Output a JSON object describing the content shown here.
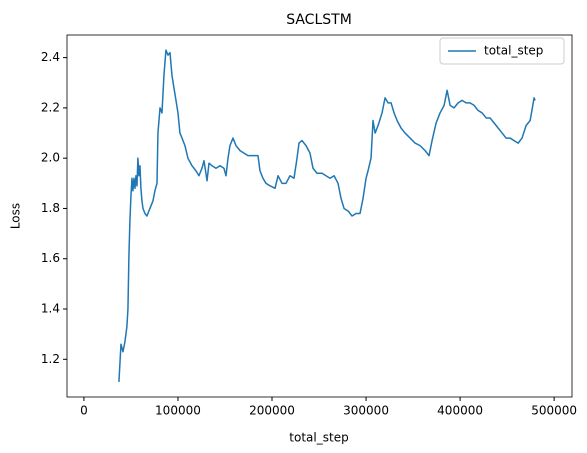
{
  "chart_data": {
    "type": "line",
    "title": "SACLSTM",
    "xlabel": "total_step",
    "ylabel": "Loss",
    "x": [
      37200,
      39400,
      41500,
      43600,
      45700,
      46800,
      47900,
      48900,
      50000,
      51100,
      52100,
      53200,
      54300,
      55300,
      56400,
      57400,
      58500,
      59600,
      60600,
      61700,
      62800,
      64900,
      67000,
      70200,
      73400,
      75500,
      77700,
      78700,
      80900,
      83000,
      85100,
      87200,
      89400,
      91500,
      93600,
      95700,
      97900,
      100000,
      102100,
      104300,
      107400,
      110600,
      114900,
      119100,
      122300,
      125500,
      127700,
      130900,
      133000,
      136200,
      140400,
      144700,
      148900,
      151100,
      153200,
      155300,
      158500,
      161700,
      166000,
      170200,
      174500,
      180900,
      185100,
      187200,
      190400,
      193600,
      197900,
      203200,
      206400,
      210600,
      214900,
      219100,
      223400,
      226600,
      228700,
      231900,
      236200,
      240400,
      243600,
      247900,
      253200,
      257400,
      261700,
      266000,
      270200,
      273400,
      276600,
      280900,
      285100,
      289400,
      293600,
      296800,
      300000,
      302100,
      305300,
      307400,
      309600,
      312800,
      317000,
      320200,
      323400,
      326600,
      329800,
      333000,
      337200,
      341500,
      346800,
      352100,
      357400,
      362800,
      367000,
      370200,
      374500,
      378700,
      383000,
      386200,
      389400,
      393600,
      397900,
      402100,
      406400,
      410600,
      414900,
      419100,
      423400,
      427700,
      431900,
      436200,
      440400,
      444700,
      448900,
      453200,
      457400,
      461700,
      465900,
      470200,
      474500,
      478700,
      479800
    ],
    "series": [
      {
        "name": "total_step",
        "color": "#1f77b4",
        "values": [
          1.11,
          1.26,
          1.23,
          1.27,
          1.33,
          1.4,
          1.62,
          1.75,
          1.85,
          1.92,
          1.87,
          1.92,
          1.88,
          1.93,
          1.89,
          2.0,
          1.93,
          1.97,
          1.88,
          1.83,
          1.8,
          1.78,
          1.77,
          1.8,
          1.83,
          1.87,
          1.9,
          2.1,
          2.2,
          2.18,
          2.33,
          2.43,
          2.41,
          2.42,
          2.33,
          2.28,
          2.23,
          2.18,
          2.1,
          2.08,
          2.05,
          2.0,
          1.97,
          1.95,
          1.93,
          1.96,
          1.99,
          1.91,
          1.98,
          1.97,
          1.96,
          1.97,
          1.96,
          1.93,
          2.0,
          2.05,
          2.08,
          2.05,
          2.03,
          2.02,
          2.01,
          2.01,
          2.01,
          1.95,
          1.92,
          1.9,
          1.89,
          1.88,
          1.93,
          1.9,
          1.9,
          1.93,
          1.92,
          2.0,
          2.06,
          2.07,
          2.05,
          2.02,
          1.96,
          1.94,
          1.94,
          1.93,
          1.92,
          1.93,
          1.9,
          1.84,
          1.8,
          1.79,
          1.77,
          1.78,
          1.78,
          1.84,
          1.92,
          1.95,
          2.0,
          2.15,
          2.1,
          2.13,
          2.18,
          2.24,
          2.22,
          2.22,
          2.18,
          2.15,
          2.12,
          2.1,
          2.08,
          2.06,
          2.05,
          2.03,
          2.01,
          2.07,
          2.14,
          2.18,
          2.21,
          2.27,
          2.21,
          2.2,
          2.22,
          2.23,
          2.22,
          2.22,
          2.21,
          2.19,
          2.18,
          2.16,
          2.16,
          2.14,
          2.12,
          2.1,
          2.08,
          2.08,
          2.07,
          2.06,
          2.08,
          2.13,
          2.15,
          2.24,
          2.23
        ]
      }
    ],
    "xlim": [
      -18000,
      519000
    ],
    "ylim": [
      1.05,
      2.49
    ],
    "xticks": [
      0,
      100000,
      200000,
      300000,
      400000,
      500000
    ],
    "yticks": [
      1.2,
      1.4,
      1.6,
      1.8,
      {
        "value": 2,
        "label": "2.0"
      },
      2.2,
      2.4
    ],
    "legend": "upper right"
  }
}
